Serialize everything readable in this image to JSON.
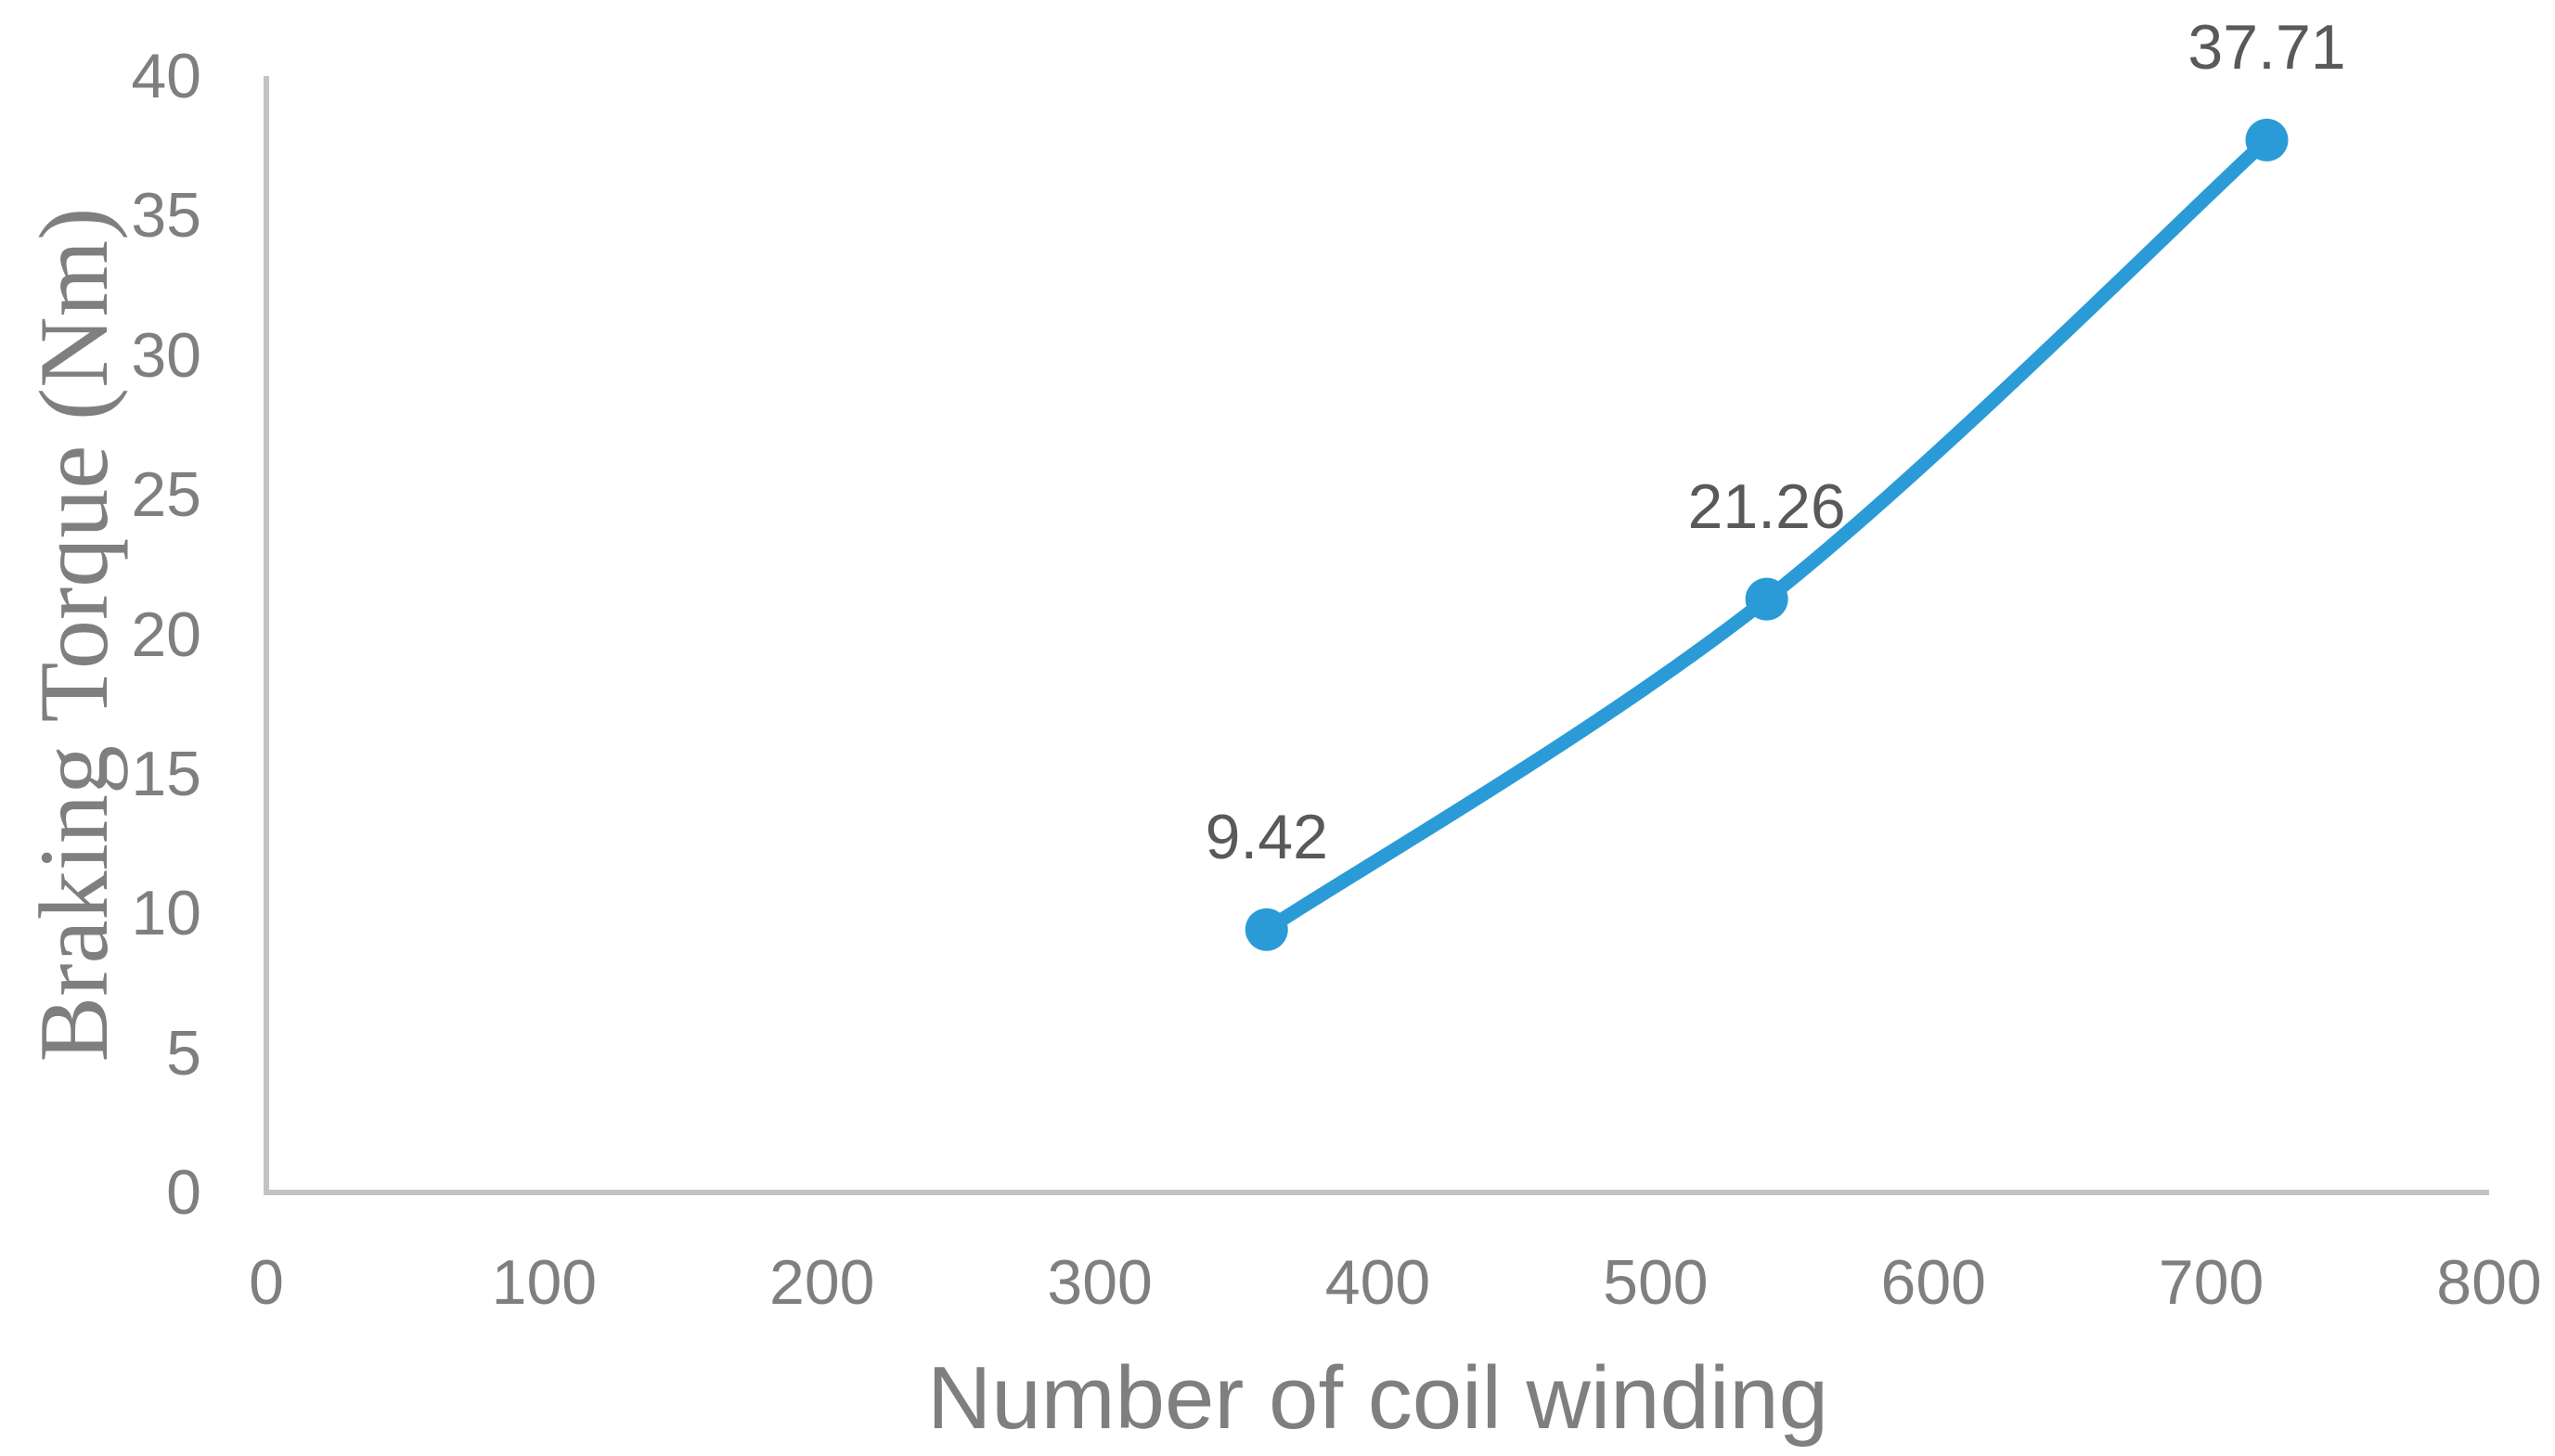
{
  "chart_data": {
    "type": "line",
    "title": "",
    "xlabel": "Number of coil winding",
    "ylabel": "Braking Torque (Nm)",
    "x": [
      360,
      540,
      720
    ],
    "y": [
      9.42,
      21.26,
      37.71
    ],
    "point_labels": [
      "9.42",
      "21.26",
      "37.71"
    ],
    "xlim": [
      0,
      800
    ],
    "ylim": [
      0,
      40
    ],
    "x_ticks": [
      0,
      100,
      200,
      300,
      400,
      500,
      600,
      700,
      800
    ],
    "y_ticks": [
      0,
      5,
      10,
      15,
      20,
      25,
      30,
      35,
      40
    ],
    "grid": false,
    "legend": "none",
    "smooth": true,
    "colors": {
      "line": "#2B9BD7",
      "marker": "#2B9BD7",
      "axis": "#C3C3C3",
      "tick_label": "#7F7F7F",
      "data_label": "#595959",
      "axis_title": "#7F7F7F"
    }
  }
}
